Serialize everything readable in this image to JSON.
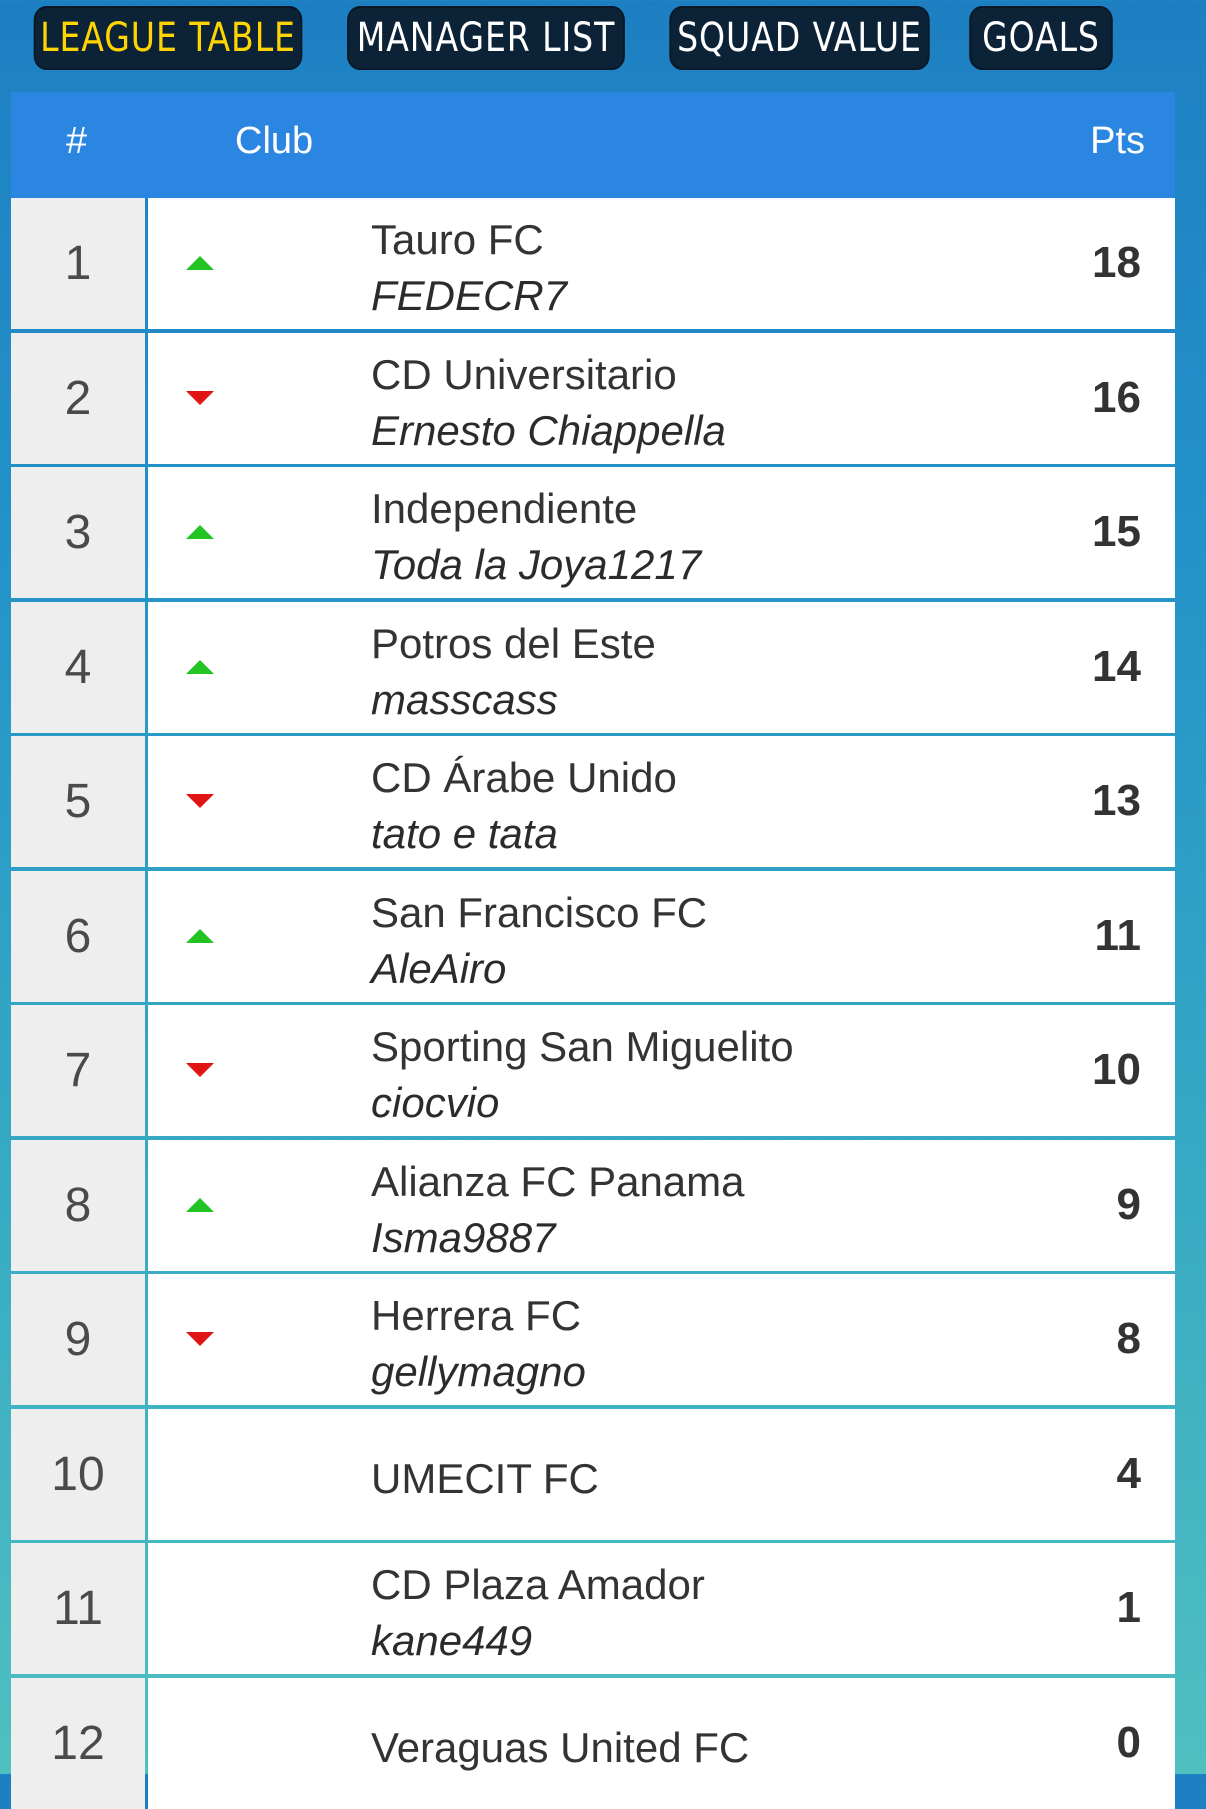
{
  "tabs": [
    "LEAGUE TABLE",
    "MANAGER LIST",
    "SQUAD VALUE",
    "GOALS"
  ],
  "active_tab": 0,
  "header": {
    "rank": "#",
    "club": "Club",
    "points": "Pts"
  },
  "colors": {
    "tab_active_text": "#ffd400",
    "header_bg": "#2a86e0",
    "up_arrow": "#22c322",
    "down_arrow": "#e01414"
  },
  "rows": [
    {
      "rank": "1",
      "trend": "up",
      "club": "Tauro FC",
      "manager": "FEDECR7",
      "points": "18"
    },
    {
      "rank": "2",
      "trend": "down",
      "club": "CD Universitario",
      "manager": "Ernesto Chiappella",
      "points": "16"
    },
    {
      "rank": "3",
      "trend": "up",
      "club": "Independiente",
      "manager": "Toda la Joya1217",
      "points": "15"
    },
    {
      "rank": "4",
      "trend": "up",
      "club": "Potros del Este",
      "manager": "masscass",
      "points": "14"
    },
    {
      "rank": "5",
      "trend": "down",
      "club": "CD Árabe Unido",
      "manager": "tato e tata",
      "points": "13"
    },
    {
      "rank": "6",
      "trend": "up",
      "club": "San Francisco FC",
      "manager": "AleAiro",
      "points": "11"
    },
    {
      "rank": "7",
      "trend": "down",
      "club": "Sporting San Miguelito",
      "manager": "ciocvio",
      "points": "10"
    },
    {
      "rank": "8",
      "trend": "up",
      "club": "Alianza FC Panama",
      "manager": "Isma9887",
      "points": "9"
    },
    {
      "rank": "9",
      "trend": "down",
      "club": "Herrera FC",
      "manager": "gellymagno",
      "points": "8"
    },
    {
      "rank": "10",
      "trend": "none",
      "club": "UMECIT FC",
      "manager": "",
      "points": "4"
    },
    {
      "rank": "11",
      "trend": "none",
      "club": "CD Plaza Amador",
      "manager": "kane449",
      "points": "1"
    },
    {
      "rank": "12",
      "trend": "none",
      "club": "Veraguas United FC",
      "manager": "",
      "points": "0"
    }
  ]
}
